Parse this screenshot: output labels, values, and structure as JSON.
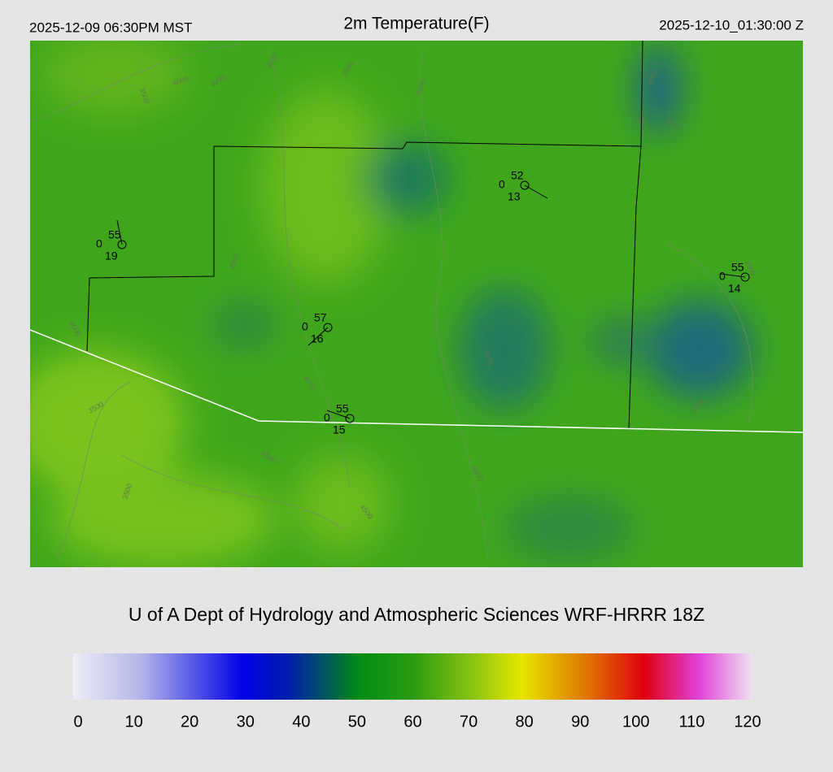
{
  "header": {
    "local_time": "2025-12-09 06:30PM MST",
    "title": "2m Temperature(F)",
    "utc_time": "2025-12-10_01:30:00 Z"
  },
  "stations": [
    {
      "temperature": 55,
      "calm": 0,
      "dewpoint": 19
    },
    {
      "temperature": 52,
      "calm": 0,
      "dewpoint": 13
    },
    {
      "temperature": 55,
      "calm": 0,
      "dewpoint": 14
    },
    {
      "temperature": 57,
      "calm": 0,
      "dewpoint": 16
    },
    {
      "temperature": 55,
      "calm": 0,
      "dewpoint": 15
    }
  ],
  "contour_labels": [
    4000,
    4000,
    3500,
    3500,
    3500,
    4000,
    6000,
    5500,
    4500,
    4000,
    3500,
    4500,
    5500,
    4500,
    3500,
    4000,
    4500,
    4500,
    4500
  ],
  "credit": "U of A Dept of Hydrology and Atmospheric Sciences WRF-HRRR 18Z",
  "colorbar": {
    "ticks": [
      0,
      10,
      20,
      30,
      40,
      50,
      60,
      70,
      80,
      90,
      100,
      110,
      120
    ]
  }
}
